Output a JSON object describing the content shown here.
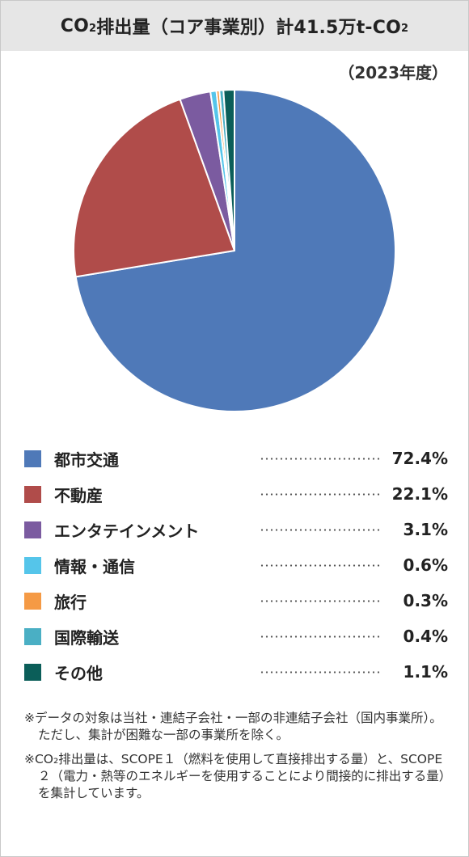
{
  "header": {
    "title_prefix": "CO",
    "title_sub": "2",
    "title_mid": "排出量（コア事業別）計41.5万t-CO",
    "title_sub2": "2"
  },
  "year_label": "（2023年度）",
  "colors": {
    "header_bg": "#e6e6e6"
  },
  "chart_data": {
    "type": "pie",
    "categories": [
      "都市交通",
      "不動産",
      "エンタテインメント",
      "情報・通信",
      "旅行",
      "国際輸送",
      "その他"
    ],
    "values": [
      72.4,
      22.1,
      3.1,
      0.6,
      0.3,
      0.4,
      1.1
    ],
    "value_labels": [
      "72.4%",
      "22.1%",
      "3.1%",
      "0.6%",
      "0.3%",
      "0.4%",
      "1.1%"
    ],
    "colors": [
      "#4f79b8",
      "#b04c4a",
      "#7b5ba0",
      "#55c5ea",
      "#f59a45",
      "#4aafc4",
      "#0b5e59"
    ],
    "start": "12 o'clock, clockwise"
  },
  "notes": [
    "※データの対象は当社・連結子会社・一部の非連結子会社（国内事業所）。ただし、集計が困難な一部の事業所を除く。",
    "※CO₂排出量は、SCOPE１（燃料を使用して直接排出する量）と、SCOPE２（電力・熱等のエネルギーを使用することにより間接的に排出する量）を集計しています。"
  ]
}
